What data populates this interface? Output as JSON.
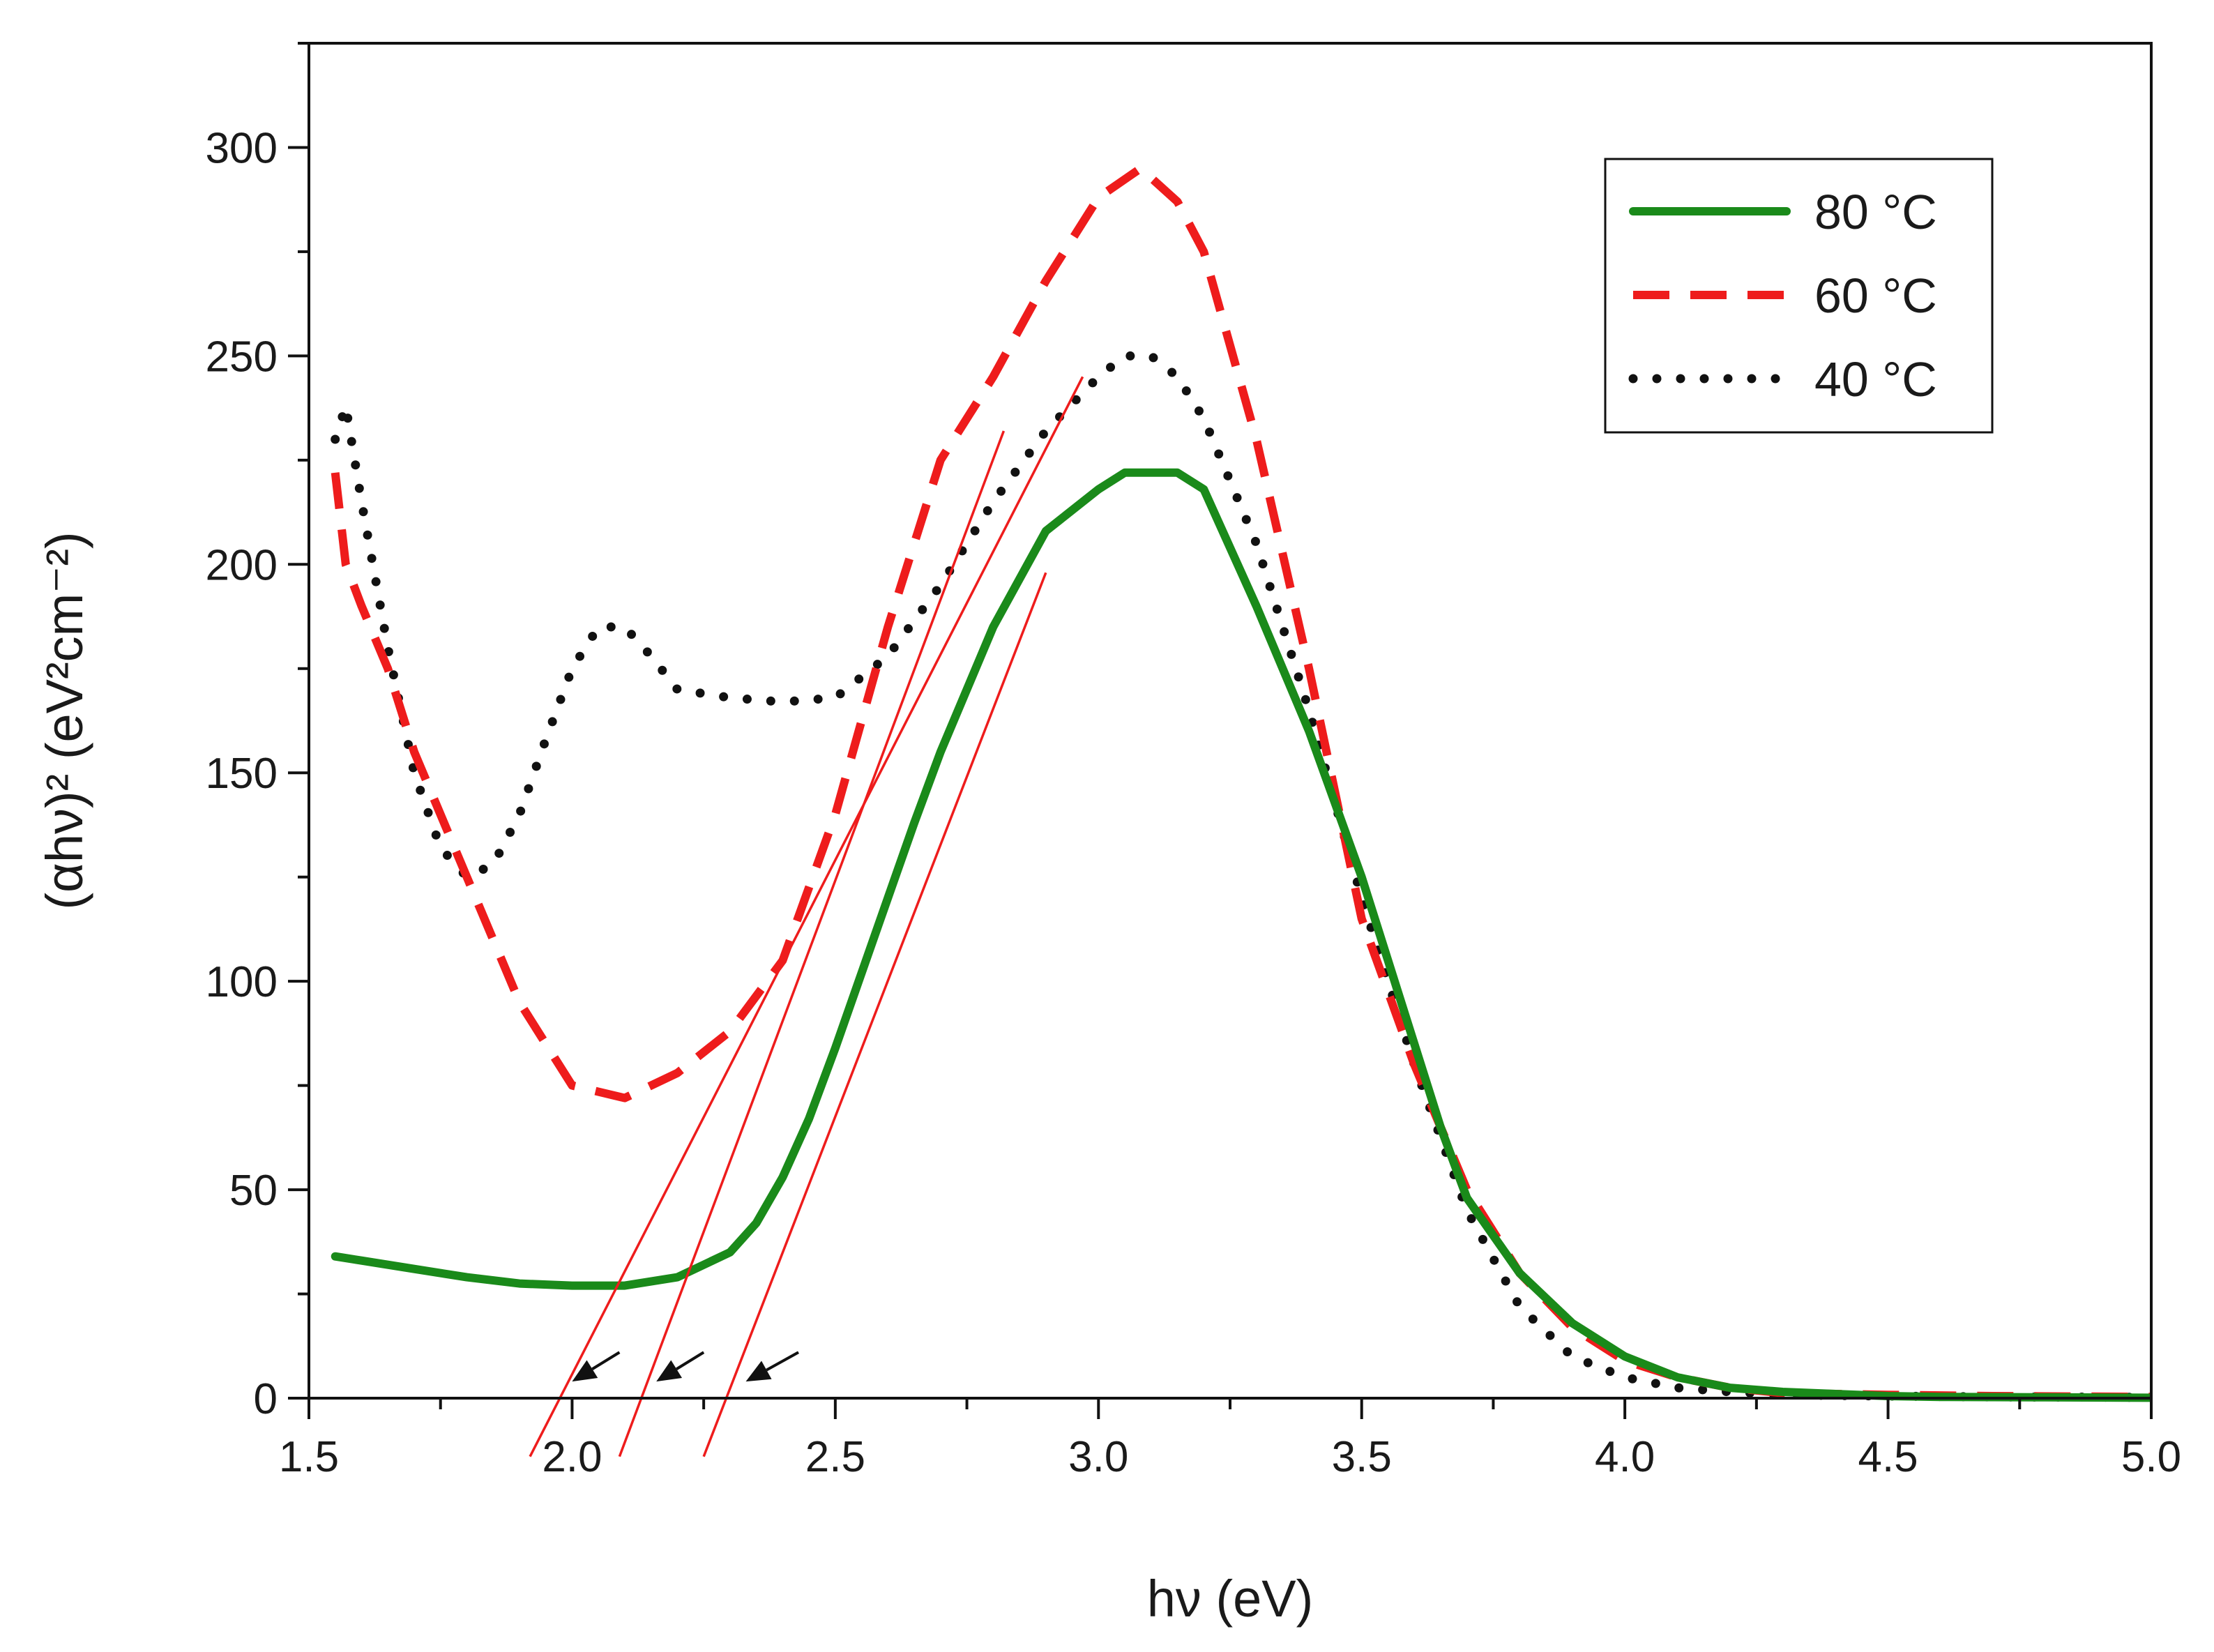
{
  "chart_data": {
    "type": "line",
    "title": "",
    "xlabel": "hν (eV)",
    "ylabel": "(αhν)² (eV²cm⁻²)",
    "xlim": [
      1.5,
      5.0
    ],
    "ylim": [
      0,
      325
    ],
    "xticks": [
      1.5,
      2.0,
      2.5,
      3.0,
      3.5,
      4.0,
      4.5,
      5.0
    ],
    "xtick_labels": [
      "1.5",
      "2.0",
      "2.5",
      "3.0",
      "3.5",
      "4.0",
      "4.5",
      "5.0"
    ],
    "yticks": [
      0,
      50,
      100,
      150,
      200,
      250,
      300
    ],
    "ytick_labels": [
      "0",
      "50",
      "100",
      "150",
      "200",
      "250",
      "300"
    ],
    "grid": false,
    "legend_position": "top-right",
    "series": [
      {
        "name": "80 °C",
        "style": "solid",
        "color": "#1a8a1a",
        "x": [
          1.55,
          1.6,
          1.7,
          1.8,
          1.9,
          2.0,
          2.1,
          2.2,
          2.3,
          2.35,
          2.4,
          2.45,
          2.5,
          2.55,
          2.6,
          2.65,
          2.7,
          2.8,
          2.9,
          3.0,
          3.05,
          3.1,
          3.15,
          3.2,
          3.3,
          3.4,
          3.5,
          3.55,
          3.6,
          3.65,
          3.7,
          3.8,
          3.9,
          4.0,
          4.1,
          4.2,
          4.3,
          4.4,
          4.5,
          4.6,
          4.8,
          5.0
        ],
        "y": [
          34,
          33,
          31,
          29,
          27.5,
          27,
          27,
          29,
          35,
          42,
          53,
          67,
          84,
          102,
          120,
          138,
          155,
          185,
          208,
          218,
          222,
          222,
          222,
          218,
          190,
          160,
          125,
          105,
          85,
          65,
          48,
          30,
          18,
          10,
          5,
          2.5,
          1.5,
          1,
          0.5,
          0.3,
          0.2,
          0.1
        ]
      },
      {
        "name": "60 °C",
        "style": "dashed",
        "color": "#ee1c1c",
        "x": [
          1.55,
          1.57,
          1.6,
          1.65,
          1.7,
          1.8,
          1.9,
          2.0,
          2.1,
          2.2,
          2.3,
          2.4,
          2.5,
          2.6,
          2.7,
          2.8,
          2.9,
          3.0,
          3.08,
          3.15,
          3.2,
          3.3,
          3.4,
          3.5,
          3.6,
          3.7,
          3.8,
          3.9,
          4.0,
          4.1,
          4.2,
          4.3,
          4.5,
          4.7,
          5.0
        ],
        "y": [
          222,
          200,
          190,
          175,
          155,
          125,
          95,
          75,
          72,
          78,
          88,
          105,
          140,
          185,
          225,
          245,
          268,
          288,
          295,
          287,
          275,
          230,
          175,
          115,
          80,
          50,
          30,
          17,
          9,
          5,
          2.5,
          1.2,
          0.8,
          0.5,
          0.3
        ]
      },
      {
        "name": "40 °C",
        "style": "dotted",
        "color": "#111111",
        "x": [
          1.55,
          1.57,
          1.6,
          1.65,
          1.7,
          1.75,
          1.8,
          1.85,
          1.9,
          1.95,
          2.0,
          2.05,
          2.1,
          2.15,
          2.2,
          2.3,
          2.4,
          2.5,
          2.6,
          2.7,
          2.8,
          2.9,
          3.0,
          3.05,
          3.1,
          3.15,
          3.2,
          3.3,
          3.4,
          3.5,
          3.6,
          3.7,
          3.8,
          3.9,
          4.0,
          4.1,
          4.2,
          4.3,
          4.5,
          4.7,
          5.0
        ],
        "y": [
          230,
          238,
          215,
          180,
          150,
          132,
          125,
          128,
          140,
          158,
          175,
          185,
          185,
          178,
          170,
          168,
          167,
          168,
          178,
          195,
          215,
          232,
          245,
          250,
          250,
          245,
          235,
          205,
          165,
          120,
          80,
          45,
          22,
          10,
          5,
          2.5,
          1.5,
          0.8,
          0.5,
          0.3,
          0.2
        ]
      }
    ],
    "tangent_lines": [
      {
        "color": "#ee1c1c",
        "x": [
          1.92,
          2.97
        ],
        "y": [
          -14,
          245
        ]
      },
      {
        "color": "#ee1c1c",
        "x": [
          2.09,
          2.82
        ],
        "y": [
          -14,
          232
        ]
      },
      {
        "color": "#ee1c1c",
        "x": [
          2.25,
          2.9
        ],
        "y": [
          -14,
          198
        ]
      }
    ],
    "annotations": [
      {
        "type": "arrow",
        "color": "#111111",
        "from": [
          2.09,
          11
        ],
        "to": [
          2.0,
          4
        ]
      },
      {
        "type": "arrow",
        "color": "#111111",
        "from": [
          2.25,
          11
        ],
        "to": [
          2.16,
          4
        ]
      },
      {
        "type": "arrow",
        "color": "#111111",
        "from": [
          2.43,
          11
        ],
        "to": [
          2.33,
          4
        ]
      }
    ]
  }
}
